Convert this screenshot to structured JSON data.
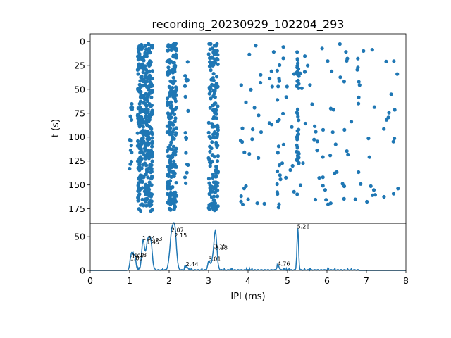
{
  "title": "recording_20230929_102204_293",
  "colors": {
    "series": "#1f77b4",
    "axis": "#000000",
    "background": "#ffffff"
  },
  "chart_data": [
    {
      "type": "scatter",
      "panel": "raster",
      "ylabel": "t (s)",
      "y_inverted": true,
      "xlim": [
        0,
        8
      ],
      "ylim": [
        190,
        -8
      ],
      "yticks": [
        "0",
        "25",
        "50",
        "75",
        "100",
        "125",
        "150",
        "175"
      ],
      "clusters": [
        {
          "x": 1.03,
          "jitter": 0.04,
          "t_ranges": [
            [
              60,
              85
            ],
            [
              95,
              140
            ]
          ],
          "count": 14
        },
        {
          "x": 1.28,
          "jitter": 0.08,
          "t_ranges": [
            [
              2,
              178
            ]
          ],
          "count": 160
        },
        {
          "x": 1.48,
          "jitter": 0.1,
          "t_ranges": [
            [
              2,
              178
            ]
          ],
          "count": 220
        },
        {
          "x": 2.07,
          "jitter": 0.12,
          "t_ranges": [
            [
              2,
              178
            ]
          ],
          "count": 240
        },
        {
          "x": 2.44,
          "jitter": 0.04,
          "t_ranges": [
            [
              10,
              150
            ]
          ],
          "count": 18
        },
        {
          "x": 3.12,
          "jitter": 0.12,
          "t_ranges": [
            [
              2,
              178
            ]
          ],
          "count": 170
        },
        {
          "x": 4.78,
          "jitter": 0.05,
          "t_ranges": [
            [
              10,
              175
            ]
          ],
          "count": 18
        },
        {
          "x": 5.26,
          "jitter": 0.03,
          "t_ranges": [
            [
              2,
              50
            ],
            [
              70,
              130
            ]
          ],
          "count": 45
        },
        {
          "x": 5.8,
          "jitter": 2.0,
          "t_ranges": [
            [
              2,
              175
            ]
          ],
          "count": 130
        }
      ]
    },
    {
      "type": "line",
      "panel": "histogram",
      "xlabel": "IPI (ms)",
      "xlim": [
        0,
        8
      ],
      "ylim": [
        0,
        70
      ],
      "xticks": [
        "0",
        "1",
        "2",
        "3",
        "4",
        "5",
        "6",
        "7",
        "8"
      ],
      "yticks": [
        "0",
        "50"
      ],
      "peaks": [
        {
          "x": 1.03,
          "height": 14,
          "width": 0.03
        },
        {
          "x": 1.07,
          "height": 17,
          "width": 0.03
        },
        {
          "x": 1.13,
          "height": 19,
          "width": 0.03
        },
        {
          "x": 1.34,
          "height": 44,
          "width": 0.035
        },
        {
          "x": 1.45,
          "height": 38,
          "width": 0.04
        },
        {
          "x": 1.53,
          "height": 43,
          "width": 0.04
        },
        {
          "x": 2.07,
          "height": 56,
          "width": 0.05
        },
        {
          "x": 2.15,
          "height": 48,
          "width": 0.04
        },
        {
          "x": 2.44,
          "height": 5,
          "width": 0.03
        },
        {
          "x": 3.01,
          "height": 13,
          "width": 0.03
        },
        {
          "x": 3.15,
          "height": 32,
          "width": 0.05
        },
        {
          "x": 3.18,
          "height": 30,
          "width": 0.03
        },
        {
          "x": 4.76,
          "height": 6,
          "width": 0.03
        },
        {
          "x": 5.26,
          "height": 61,
          "width": 0.02
        }
      ],
      "peak_labels": [
        "1.03",
        "1.07",
        "1.13",
        "1.34",
        "1.45",
        "1.53",
        "2.07",
        "2.15",
        "2.44",
        "3.01",
        "3.15",
        "3.18",
        "4.76",
        "5.26"
      ]
    }
  ]
}
